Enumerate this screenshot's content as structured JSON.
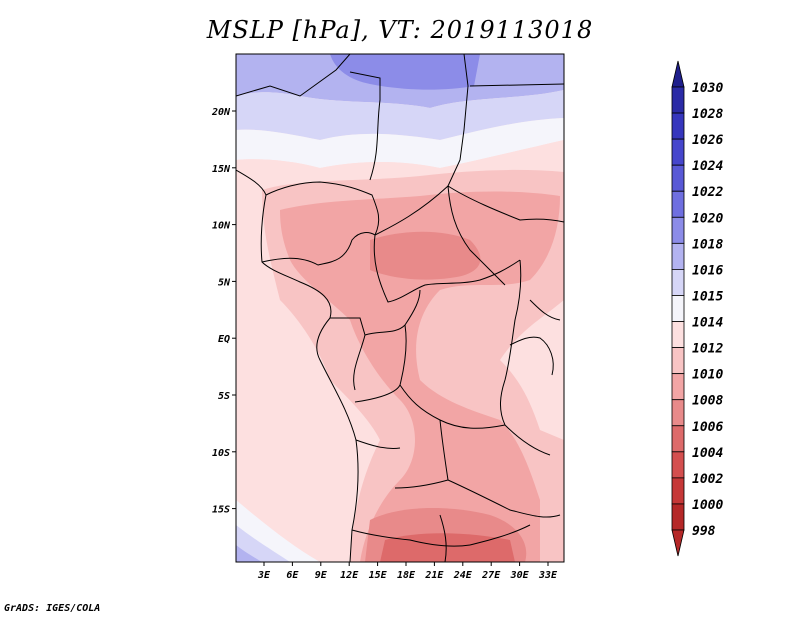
{
  "title": "MSLP [hPa], VT: 2019113018",
  "footer": "GrADS: IGES/COLA",
  "lon_ticks": [
    "3E",
    "6E",
    "9E",
    "12E",
    "15E",
    "18E",
    "21E",
    "24E",
    "27E",
    "30E",
    "33E"
  ],
  "lat_ticks": [
    "20N",
    "15N",
    "10N",
    "5N",
    "EQ",
    "5S",
    "10S",
    "15S"
  ],
  "colorbar": {
    "levels": [
      "1030",
      "1028",
      "1026",
      "1024",
      "1022",
      "1020",
      "1018",
      "1016",
      "1015",
      "1014",
      "1012",
      "1010",
      "1008",
      "1006",
      "1004",
      "1002",
      "1000",
      "998"
    ],
    "colors": [
      "#1f1f8c",
      "#2b2ba6",
      "#3636bd",
      "#4646cc",
      "#5959d6",
      "#6f6fe0",
      "#8c8ce8",
      "#b3b3f0",
      "#d6d6f7",
      "#f5f5fb",
      "#fde0e0",
      "#f8c4c4",
      "#f2a5a5",
      "#e88a8a",
      "#dd6a6a",
      "#d44f4f",
      "#c63838",
      "#b52828"
    ]
  }
}
